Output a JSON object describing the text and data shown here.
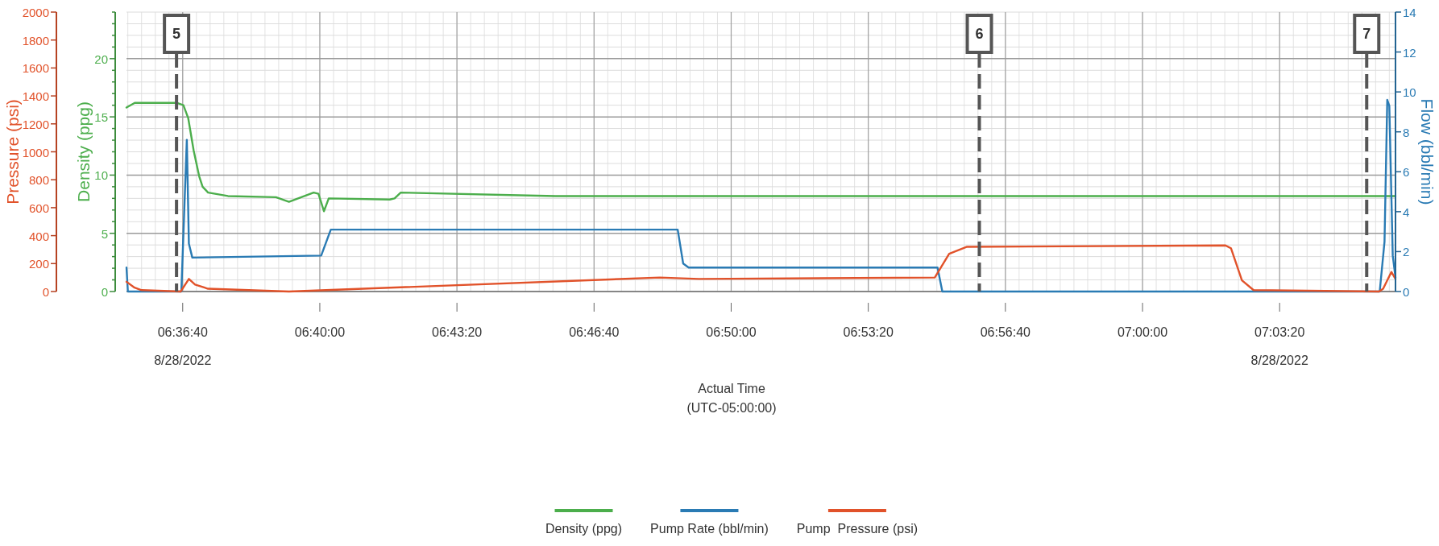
{
  "chart_data": {
    "type": "line",
    "xlabel": "Actual Time\n(UTC-05:00:00)",
    "ylabel": "Density (ppg)",
    "y2label": "Flow (bbl/min)",
    "y3label": "Pressure (psi)",
    "xlim": [
      "2022-08-28T06:35:18",
      "2022-08-28T07:06:09"
    ],
    "xticks": [
      {
        "value": "2022-08-28T06:36:40",
        "label": "06:36:40\n8/28/2022"
      },
      {
        "value": "2022-08-28T06:40:00",
        "label": "06:40:00"
      },
      {
        "value": "2022-08-28T06:43:20",
        "label": "06:43:20"
      },
      {
        "value": "2022-08-28T06:46:40",
        "label": "06:46:40"
      },
      {
        "value": "2022-08-28T06:50:00",
        "label": "06:50:00"
      },
      {
        "value": "2022-08-28T06:53:20",
        "label": "06:53:20"
      },
      {
        "value": "2022-08-28T06:56:40",
        "label": "06:56:40"
      },
      {
        "value": "2022-08-28T07:00:00",
        "label": "07:00:00"
      },
      {
        "value": "2022-08-28T07:03:20",
        "label": "07:03:20\n8/28/2022"
      }
    ],
    "ylim": [
      0,
      24
    ],
    "yticks": [
      0,
      {
        "value": 1,
        "label": null
      },
      {
        "value": 2,
        "label": null
      },
      {
        "value": 3,
        "label": null
      },
      {
        "value": 4,
        "label": null
      },
      5,
      {
        "value": 6,
        "label": null
      },
      {
        "value": 7,
        "label": null
      },
      {
        "value": 8,
        "label": null
      },
      {
        "value": 9,
        "label": null
      },
      10,
      {
        "value": 11,
        "label": null
      },
      {
        "value": 12,
        "label": null
      },
      {
        "value": 13,
        "label": null
      },
      {
        "value": 14,
        "label": null
      },
      15,
      {
        "value": 16,
        "label": null
      },
      {
        "value": 17,
        "label": null
      },
      {
        "value": 18,
        "label": null
      },
      {
        "value": 19,
        "label": null
      },
      20,
      {
        "value": 21,
        "label": null
      },
      {
        "value": 22,
        "label": null
      },
      {
        "value": 23,
        "label": null
      },
      {
        "value": 24,
        "label": null
      }
    ],
    "y2lim": [
      0,
      14
    ],
    "y2ticks": [
      0,
      2,
      4,
      6,
      8,
      10,
      12,
      14
    ],
    "y3lim": [
      0,
      2000
    ],
    "y3ticks": [
      0,
      200,
      400,
      600,
      800,
      1000,
      1200,
      1400,
      1600,
      1800,
      2000
    ],
    "grid": true,
    "legend": "bottom",
    "ref_lines": [
      {
        "axis": "x",
        "value": "2022-08-28T06:36:31",
        "label": "5",
        "color": "#555555",
        "line_style": "dashed"
      },
      {
        "axis": "x",
        "value": "2022-08-28T06:56:02",
        "label": "6",
        "color": "#555555",
        "line_style": "dashed"
      },
      {
        "axis": "x",
        "value": "2022-08-28T07:05:27",
        "label": "7",
        "color": "#555555",
        "line_style": "dashed"
      }
    ],
    "series": [
      {
        "name": "Density (ppg)",
        "color": "#4cae4c",
        "x": [
          "2022-08-28T06:35:18",
          "2022-08-28T06:35:30",
          "2022-08-28T06:36:32",
          "2022-08-28T06:36:41",
          "2022-08-28T06:36:48",
          "2022-08-28T06:36:56",
          "2022-08-28T06:37:04",
          "2022-08-28T06:37:09",
          "2022-08-28T06:37:17",
          "2022-08-28T06:37:46",
          "2022-08-28T06:38:56",
          "2022-08-28T06:39:15",
          "2022-08-28T06:39:51",
          "2022-08-28T06:39:58",
          "2022-08-28T06:40:06",
          "2022-08-28T06:40:13",
          "2022-08-28T06:41:42",
          "2022-08-28T06:41:49",
          "2022-08-28T06:41:58",
          "2022-08-28T06:45:44",
          "2022-08-28T07:06:09"
        ],
        "values": [
          15.8,
          16.2,
          16.2,
          16.0,
          14.9,
          12.1,
          9.9,
          9.0,
          8.5,
          8.2,
          8.1,
          7.7,
          8.5,
          8.4,
          6.9,
          8.0,
          7.9,
          8.0,
          8.5,
          8.2,
          8.2
        ]
      },
      {
        "name": "Pump Rate (bbl/min)",
        "color": "#2a7bb4",
        "axis": "y2",
        "x": [
          "2022-08-28T06:35:18",
          "2022-08-28T06:35:20",
          "2022-08-28T06:36:38",
          "2022-08-28T06:36:46",
          "2022-08-28T06:36:49",
          "2022-08-28T06:36:54",
          "2022-08-28T06:40:02",
          "2022-08-28T06:40:16",
          "2022-08-28T06:48:42",
          "2022-08-28T06:48:50",
          "2022-08-28T06:48:58",
          "2022-08-28T06:55:01",
          "2022-08-28T06:55:08",
          "2022-08-28T07:05:46",
          "2022-08-28T07:05:53",
          "2022-08-28T07:05:57",
          "2022-08-28T07:06:00",
          "2022-08-28T07:06:05",
          "2022-08-28T07:06:09"
        ],
        "values": [
          1.2,
          0,
          0,
          7.6,
          2.4,
          1.7,
          1.8,
          3.1,
          3.1,
          1.4,
          1.2,
          1.2,
          0,
          0,
          2.5,
          9.6,
          9.3,
          1.8,
          0.7
        ]
      },
      {
        "name": "Pump  Pressure (psi)",
        "color": "#e1522a",
        "axis": "y3",
        "x": [
          "2022-08-28T06:35:18",
          "2022-08-28T06:35:29",
          "2022-08-28T06:35:40",
          "2022-08-28T06:36:37",
          "2022-08-28T06:36:49",
          "2022-08-28T06:36:58",
          "2022-08-28T06:37:17",
          "2022-08-28T06:39:15",
          "2022-08-28T06:48:16",
          "2022-08-28T06:49:13",
          "2022-08-28T06:54:57",
          "2022-08-28T06:55:18",
          "2022-08-28T06:55:44",
          "2022-08-28T07:02:01",
          "2022-08-28T07:02:09",
          "2022-08-28T07:02:25",
          "2022-08-28T07:02:42",
          "2022-08-28T07:05:45",
          "2022-08-28T07:05:51",
          "2022-08-28T07:06:03",
          "2022-08-28T07:06:09"
        ],
        "values": [
          70,
          30,
          10,
          0,
          90,
          50,
          20,
          0,
          100,
          90,
          100,
          270,
          320,
          330,
          310,
          80,
          10,
          0,
          20,
          140,
          90
        ]
      }
    ]
  }
}
